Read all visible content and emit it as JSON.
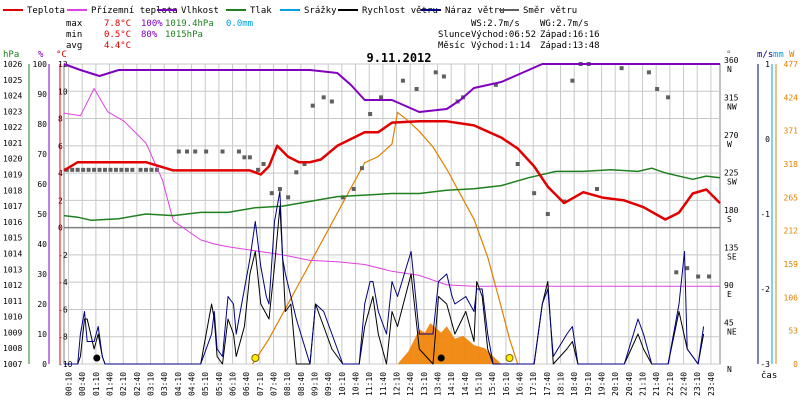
{
  "legend": [
    {
      "label": "Teplota",
      "color": "#e00000"
    },
    {
      "label": "Přízemní teplota",
      "color": "#e040e0"
    },
    {
      "label": "Vlhkost",
      "color": "#8000c0"
    },
    {
      "label": "Tlak",
      "color": "#208020"
    },
    {
      "label": "Srážky",
      "color": "#00a0e0"
    },
    {
      "label": "Rychlost větru",
      "color": "#000000"
    },
    {
      "label": "Náraz větru",
      "color": "#000080"
    },
    {
      "label": "Směr větru",
      "color": "#606060"
    }
  ],
  "stats": {
    "max_label": "max",
    "max_temp": "7.8°C",
    "max_hum": "100%",
    "max_press": "1019.4hPa",
    "max_rain": "0.0mm",
    "min_label": "min",
    "min_temp": "0.5°C",
    "min_hum": "80%",
    "min_press": "1015hPa",
    "avg_label": "avg",
    "avg_temp": "4.4°C"
  },
  "info": {
    "ws": "WS:2.7m/s",
    "wg": "WG:2.7m/s",
    "sun_label": "Slunce",
    "sunrise": "Východ:06:52",
    "sunset": "Západ:16:16",
    "moon_label": "Měsíc",
    "moonrise": "Východ:1:14",
    "moonset": "Západ:13:48"
  },
  "title": "9.11.2012",
  "units": {
    "hpa": "hPa",
    "pct": "%",
    "degc": "°C",
    "deg": "°",
    "ms": "m/s",
    "mm": "mm",
    "w": "W",
    "time": "čas"
  },
  "colors": {
    "temp": "#e00000",
    "ground_temp": "#e040e0",
    "humidity": "#8000c0",
    "pressure": "#208020",
    "rain": "#00a0e0",
    "wind": "#000000",
    "gust": "#000080",
    "dir": "#606060",
    "solar": "#e08000",
    "grid": "#c8c8c8",
    "zero": "#808080"
  },
  "chart_data": {
    "type": "line",
    "title": "9.11.2012",
    "x_unit": "time of day (hours)",
    "x_ticks": [
      "00:10",
      "00:40",
      "01:10",
      "01:40",
      "02:10",
      "02:40",
      "03:10",
      "03:40",
      "04:10",
      "04:40",
      "05:10",
      "05:40",
      "06:10",
      "06:40",
      "07:10",
      "07:40",
      "08:10",
      "08:40",
      "09:10",
      "09:40",
      "10:10",
      "10:40",
      "11:10",
      "11:40",
      "12:10",
      "12:40",
      "13:10",
      "13:40",
      "14:10",
      "14:40",
      "15:10",
      "15:40",
      "16:10",
      "16:40",
      "17:10",
      "17:40",
      "18:10",
      "18:40",
      "19:10",
      "19:40",
      "20:10",
      "20:40",
      "21:10",
      "21:40",
      "22:10",
      "22:40",
      "23:10",
      "23:40"
    ],
    "axes": {
      "temp_c": {
        "ticks": [
          -10,
          -8,
          -6,
          -4,
          -2,
          0,
          2,
          4,
          6,
          8,
          10,
          12
        ],
        "range": [
          -10,
          12
        ]
      },
      "humidity_pct": {
        "ticks": [
          0,
          10,
          20,
          30,
          40,
          50,
          60,
          70,
          80,
          90,
          100
        ],
        "range": [
          0,
          100
        ]
      },
      "pressure_hpa": {
        "ticks": [
          1007,
          1008,
          1009,
          1010,
          1011,
          1012,
          1013,
          1014,
          1015,
          1016,
          1017,
          1018,
          1019,
          1020,
          1021,
          1022,
          1023,
          1024,
          1025,
          1026
        ],
        "range": [
          1007,
          1026
        ]
      },
      "direction_deg": {
        "ticks": [
          0,
          45,
          90,
          135,
          180,
          225,
          270,
          315,
          360
        ],
        "labels": [
          "N",
          "NE",
          "E",
          "SE",
          "S",
          "SW",
          "W",
          "NW",
          "N"
        ]
      },
      "wind_ms": {
        "ticks": [
          -3,
          -2,
          -1,
          0,
          1
        ],
        "range": [
          -3,
          1
        ]
      },
      "rain_mm": {
        "ticks": [
          -1,
          0,
          1
        ],
        "range": [
          -1,
          1
        ]
      },
      "solar_w": {
        "ticks": [
          0,
          53,
          106,
          159,
          212,
          265,
          318,
          371,
          424,
          477
        ],
        "range": [
          0,
          477
        ]
      }
    },
    "series": [
      {
        "name": "Teplota",
        "axis": "temp_c",
        "x": [
          0,
          0.5,
          1,
          2,
          3,
          4,
          5,
          6,
          6.8,
          7.2,
          7.5,
          7.8,
          8.2,
          8.6,
          9,
          9.4,
          10,
          11,
          11.5,
          12,
          13,
          14,
          15,
          16,
          16.6,
          17.2,
          17.7,
          18.3,
          19,
          19.7,
          20.5,
          21.2,
          22,
          22.5,
          23,
          23.5,
          24
        ],
        "y": [
          4.2,
          4.8,
          4.8,
          4.8,
          4.8,
          4.2,
          4.2,
          4.2,
          4.2,
          3.9,
          4.5,
          6,
          5.2,
          4.8,
          4.8,
          5,
          6,
          7,
          7,
          7.7,
          7.8,
          7.8,
          7.5,
          6.6,
          5.8,
          4.5,
          3,
          1.8,
          2.6,
          2.2,
          2,
          1.5,
          0.6,
          1.1,
          2.5,
          2.8,
          1.8
        ]
      },
      {
        "name": "Přízemní teplota",
        "axis": "temp_c",
        "x": [
          0,
          0.6,
          1.1,
          1.6,
          2.2,
          3,
          3.6,
          4,
          4.5,
          5,
          5.5,
          6,
          7,
          8,
          9,
          10,
          11,
          12,
          13,
          14,
          15,
          16,
          17,
          18,
          19,
          20,
          21,
          22,
          23,
          24
        ],
        "y": [
          8.4,
          8.2,
          10.2,
          8.5,
          7.8,
          6.2,
          3.5,
          0.5,
          -0.2,
          -0.9,
          -1.2,
          -1.4,
          -1.7,
          -2,
          -2.4,
          -2.5,
          -2.7,
          -3.2,
          -3.5,
          -4.2,
          -4.3,
          -4.3,
          -4.3,
          -4.3,
          -4.3,
          -4.3,
          -4.3,
          -4.3,
          -4.3,
          -4.3
        ]
      },
      {
        "name": "Vlhkost",
        "axis": "humidity_pct",
        "x": [
          0,
          0.6,
          1.3,
          2,
          3,
          4,
          5,
          6,
          7,
          8,
          9,
          10,
          10.5,
          11,
          12,
          13,
          14,
          14.5,
          15,
          16,
          17,
          17.5,
          18,
          19,
          20,
          21,
          22,
          23,
          24
        ],
        "y": [
          100,
          98,
          96,
          98,
          98,
          98,
          98,
          98,
          98,
          98,
          98,
          97,
          93,
          88,
          88,
          84,
          85,
          88,
          92,
          94,
          98,
          100,
          100,
          100,
          100,
          100,
          100,
          100,
          100
        ]
      },
      {
        "name": "Tlak",
        "axis": "pressure_hpa",
        "x": [
          0,
          0.5,
          1,
          2,
          3,
          4,
          5,
          6,
          7,
          8,
          9,
          10,
          11,
          12,
          13,
          14,
          15,
          16,
          17,
          18,
          19,
          20,
          21,
          21.5,
          22,
          23,
          23.5,
          24
        ],
        "y": [
          1016.4,
          1016.3,
          1016.1,
          1016.2,
          1016.5,
          1016.4,
          1016.6,
          1016.6,
          1016.9,
          1017,
          1017.3,
          1017.6,
          1017.7,
          1017.8,
          1017.8,
          1018,
          1018.1,
          1018.3,
          1018.8,
          1019.2,
          1019.2,
          1019.3,
          1019.2,
          1019.4,
          1019.1,
          1018.7,
          1018.9,
          1018.8
        ]
      },
      {
        "name": "Směr větru",
        "axis": "direction_deg",
        "type": "scatter",
        "x": [
          0.1,
          0.3,
          0.5,
          0.7,
          0.9,
          1.1,
          1.3,
          1.5,
          1.7,
          1.9,
          2.1,
          2.3,
          2.5,
          2.8,
          3,
          3.2,
          3.4,
          4.2,
          4.5,
          4.8,
          5.2,
          5.8,
          6.4,
          6.6,
          6.8,
          7.1,
          7.3,
          7.6,
          7.9,
          8.2,
          8.5,
          8.8,
          9.1,
          9.5,
          9.8,
          10.2,
          10.6,
          10.9,
          11.2,
          11.6,
          12.4,
          12.9,
          13.6,
          13.9,
          14.4,
          14.6,
          15.8,
          16.6,
          17.2,
          17.7,
          18.3,
          18.6,
          18.9,
          19.2,
          19.5,
          20.4,
          21.4,
          21.7,
          22.1,
          22.4,
          22.8,
          23.2,
          23.6
        ],
        "y": [
          233,
          233,
          233,
          233,
          233,
          233,
          233,
          233,
          233,
          233,
          233,
          233,
          233,
          233,
          233,
          233,
          233,
          255,
          255,
          255,
          255,
          255,
          255,
          248,
          248,
          233,
          240,
          205,
          210,
          200,
          230,
          240,
          310,
          320,
          315,
          200,
          210,
          235,
          300,
          320,
          340,
          330,
          350,
          345,
          315,
          320,
          335,
          240,
          205,
          180,
          195,
          340,
          360,
          360,
          210,
          355,
          350,
          330,
          320,
          110,
          115,
          105,
          105
        ]
      },
      {
        "name": "Rychlost větru",
        "axis": "wind_ms",
        "x": [
          0,
          0.5,
          0.6,
          0.75,
          0.85,
          1.1,
          1.25,
          1.4,
          1.5,
          5,
          5.4,
          5.5,
          5.6,
          5.8,
          6,
          6.2,
          6.3,
          6.6,
          6.8,
          7,
          7.2,
          7.5,
          7.7,
          7.9,
          8.1,
          8.3,
          8.5,
          9,
          9.2,
          9.5,
          9.8,
          10.2,
          10.8,
          11,
          11.3,
          11.5,
          11.8,
          12,
          12.2,
          12.7,
          13,
          13.5,
          13.7,
          14,
          14.3,
          14.7,
          15,
          15.1,
          15.3,
          15.5,
          15.7,
          17.2,
          17.5,
          17.7,
          17.9,
          18.4,
          18.6,
          18.8,
          19.2,
          20.5,
          21,
          21.2,
          21.5,
          22.1,
          22.5,
          22.8,
          23.2,
          23.4
        ],
        "y": [
          -3,
          -3,
          -2.9,
          -2.4,
          -2.4,
          -2.8,
          -2.6,
          -2.9,
          -3,
          -3,
          -2.2,
          -2.4,
          -2.9,
          -3,
          -2.4,
          -2.6,
          -2.9,
          -2.5,
          -1.8,
          -1.5,
          -2.2,
          -2.4,
          -1.7,
          -0.9,
          -2.3,
          -2.2,
          -3,
          -3,
          -2.2,
          -2.5,
          -2.8,
          -3,
          -3,
          -2.5,
          -2.1,
          -2.6,
          -3,
          -2.3,
          -2.5,
          -1.8,
          -2.8,
          -3,
          -2.1,
          -2.2,
          -2.6,
          -2.3,
          -2.7,
          -1.9,
          -2.1,
          -2.8,
          -3,
          -3,
          -2.2,
          -1.9,
          -3,
          -2.8,
          -2.7,
          -3,
          -3,
          -3,
          -2.6,
          -2.8,
          -3,
          -3,
          -2.3,
          -2.8,
          -3,
          -2.6
        ]
      },
      {
        "name": "Náraz větru",
        "axis": "wind_ms",
        "x": [
          0,
          0.5,
          0.6,
          0.75,
          0.85,
          1.1,
          1.25,
          1.4,
          1.5,
          5,
          5.4,
          5.5,
          5.6,
          5.8,
          6,
          6.2,
          6.3,
          6.6,
          6.8,
          7,
          7.2,
          7.4,
          7.5,
          7.7,
          7.9,
          8,
          8.1,
          8.3,
          8.5,
          9,
          9.2,
          9.5,
          9.8,
          10.2,
          10.8,
          11,
          11.2,
          11.3,
          11.5,
          11.8,
          12,
          12.2,
          12.7,
          13,
          13.5,
          13.7,
          14,
          14.2,
          14.3,
          14.7,
          15,
          15.1,
          15.3,
          15.5,
          15.7,
          17.2,
          17.5,
          17.7,
          17.9,
          18.4,
          18.6,
          18.8,
          19.2,
          20.5,
          21,
          21.2,
          21.5,
          22.1,
          22.5,
          22.7,
          22.8,
          23.2,
          23.4
        ],
        "y": [
          -3,
          -3,
          -2.6,
          -2.3,
          -2.7,
          -2.7,
          -2.5,
          -2.9,
          -3,
          -3,
          -2.6,
          -2.3,
          -2.8,
          -2.9,
          -2.1,
          -2.2,
          -2.6,
          -2,
          -1.6,
          -1.1,
          -1.7,
          -2.1,
          -2.2,
          -1.1,
          -0.7,
          -1.6,
          -1.8,
          -2.1,
          -2.4,
          -3,
          -2.2,
          -2.3,
          -2.6,
          -3,
          -3,
          -2.2,
          -1.9,
          -1.9,
          -2.3,
          -2.6,
          -1.9,
          -2.1,
          -1.5,
          -2.6,
          -2.6,
          -1.9,
          -1.8,
          -2.1,
          -2.2,
          -2.1,
          -2.3,
          -2,
          -2,
          -2.6,
          -3,
          -3,
          -2.2,
          -2,
          -2.9,
          -2.6,
          -2.5,
          -3,
          -3,
          -3,
          -2.4,
          -2.6,
          -3,
          -3,
          -2.2,
          -1.5,
          -2.8,
          -3,
          -2.5
        ]
      },
      {
        "name": "Solar",
        "axis": "solar_w",
        "type": "area",
        "x": [
          6.9,
          7.5,
          8,
          8.5,
          9,
          9.5,
          10,
          10.5,
          11,
          11.5,
          12,
          12.2,
          12.5,
          13,
          13.5,
          14,
          14.5,
          15,
          15.5,
          16,
          16.3,
          16.6
        ],
        "y": [
          0,
          40,
          80,
          120,
          160,
          200,
          240,
          280,
          320,
          330,
          350,
          400,
          390,
          370,
          345,
          310,
          270,
          230,
          170,
          90,
          40,
          0
        ]
      },
      {
        "name": "Solar fill",
        "axis": "solar_w",
        "type": "area",
        "x": [
          12.2,
          12.6,
          13,
          13.2,
          13.4,
          13.8,
          14,
          14.3,
          14.6,
          15,
          15.4,
          16
        ],
        "y": [
          0,
          20,
          55,
          50,
          65,
          50,
          60,
          40,
          45,
          30,
          25,
          0
        ]
      }
    ],
    "markers": {
      "sun_x": [
        7.0,
        16.3
      ],
      "moon_x": [
        1.2,
        13.8
      ]
    }
  }
}
